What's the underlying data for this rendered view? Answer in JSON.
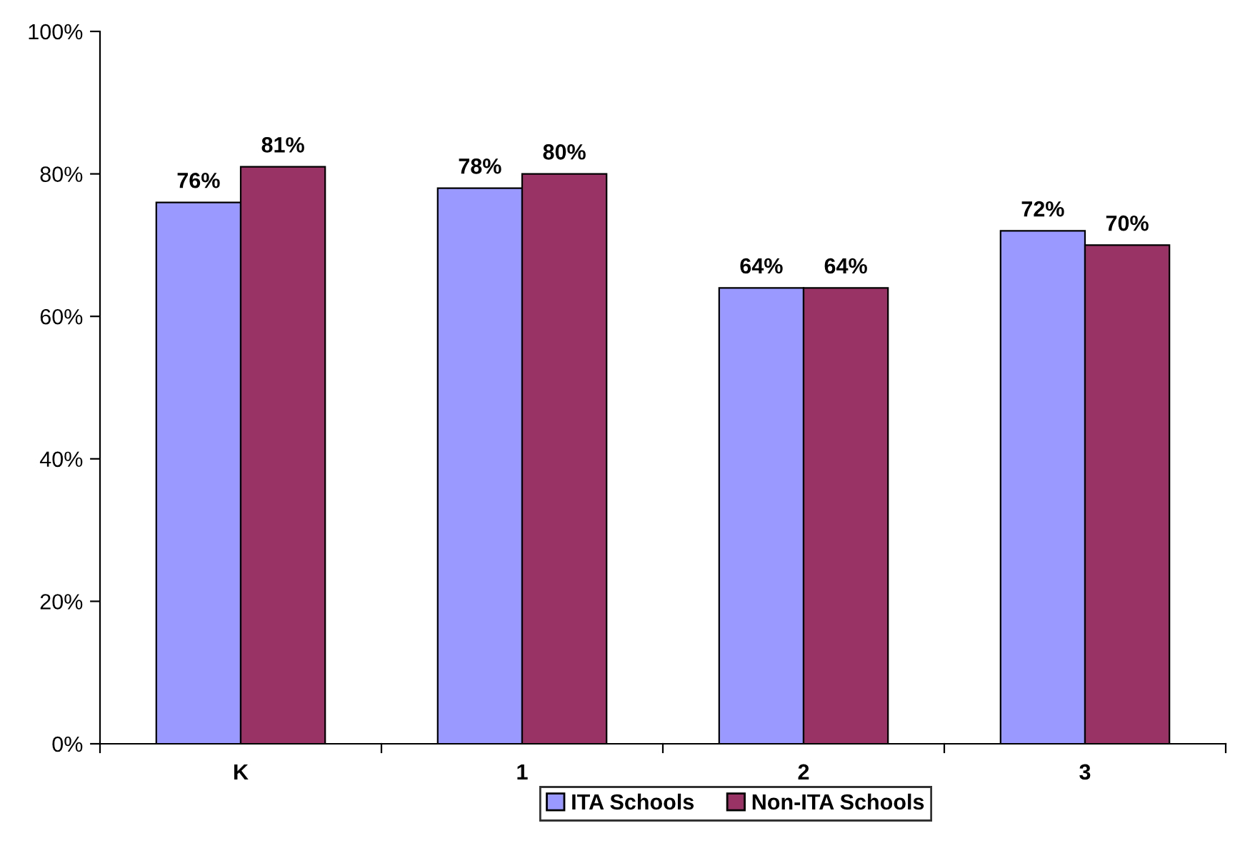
{
  "chart_data": {
    "type": "bar",
    "categories": [
      "K",
      "1",
      "2",
      "3"
    ],
    "series": [
      {
        "name": "ITA Schools",
        "color": "#9999ff",
        "values": [
          76,
          78,
          64,
          72
        ],
        "value_labels": [
          "76%",
          "78%",
          "64%",
          "72%"
        ]
      },
      {
        "name": "Non-ITA Schools",
        "color": "#993366",
        "values": [
          81,
          80,
          64,
          70
        ],
        "value_labels": [
          "81%",
          "80%",
          "64%",
          "70%"
        ]
      }
    ],
    "ylim": [
      0,
      100
    ],
    "yticks": [
      {
        "value": 0,
        "label": "0%"
      },
      {
        "value": 20,
        "label": "20%"
      },
      {
        "value": 40,
        "label": "40%"
      },
      {
        "value": 60,
        "label": "60%"
      },
      {
        "value": 80,
        "label": "80%"
      },
      {
        "value": 100,
        "label": "100%"
      }
    ],
    "grid": false,
    "legend": "bottom"
  }
}
